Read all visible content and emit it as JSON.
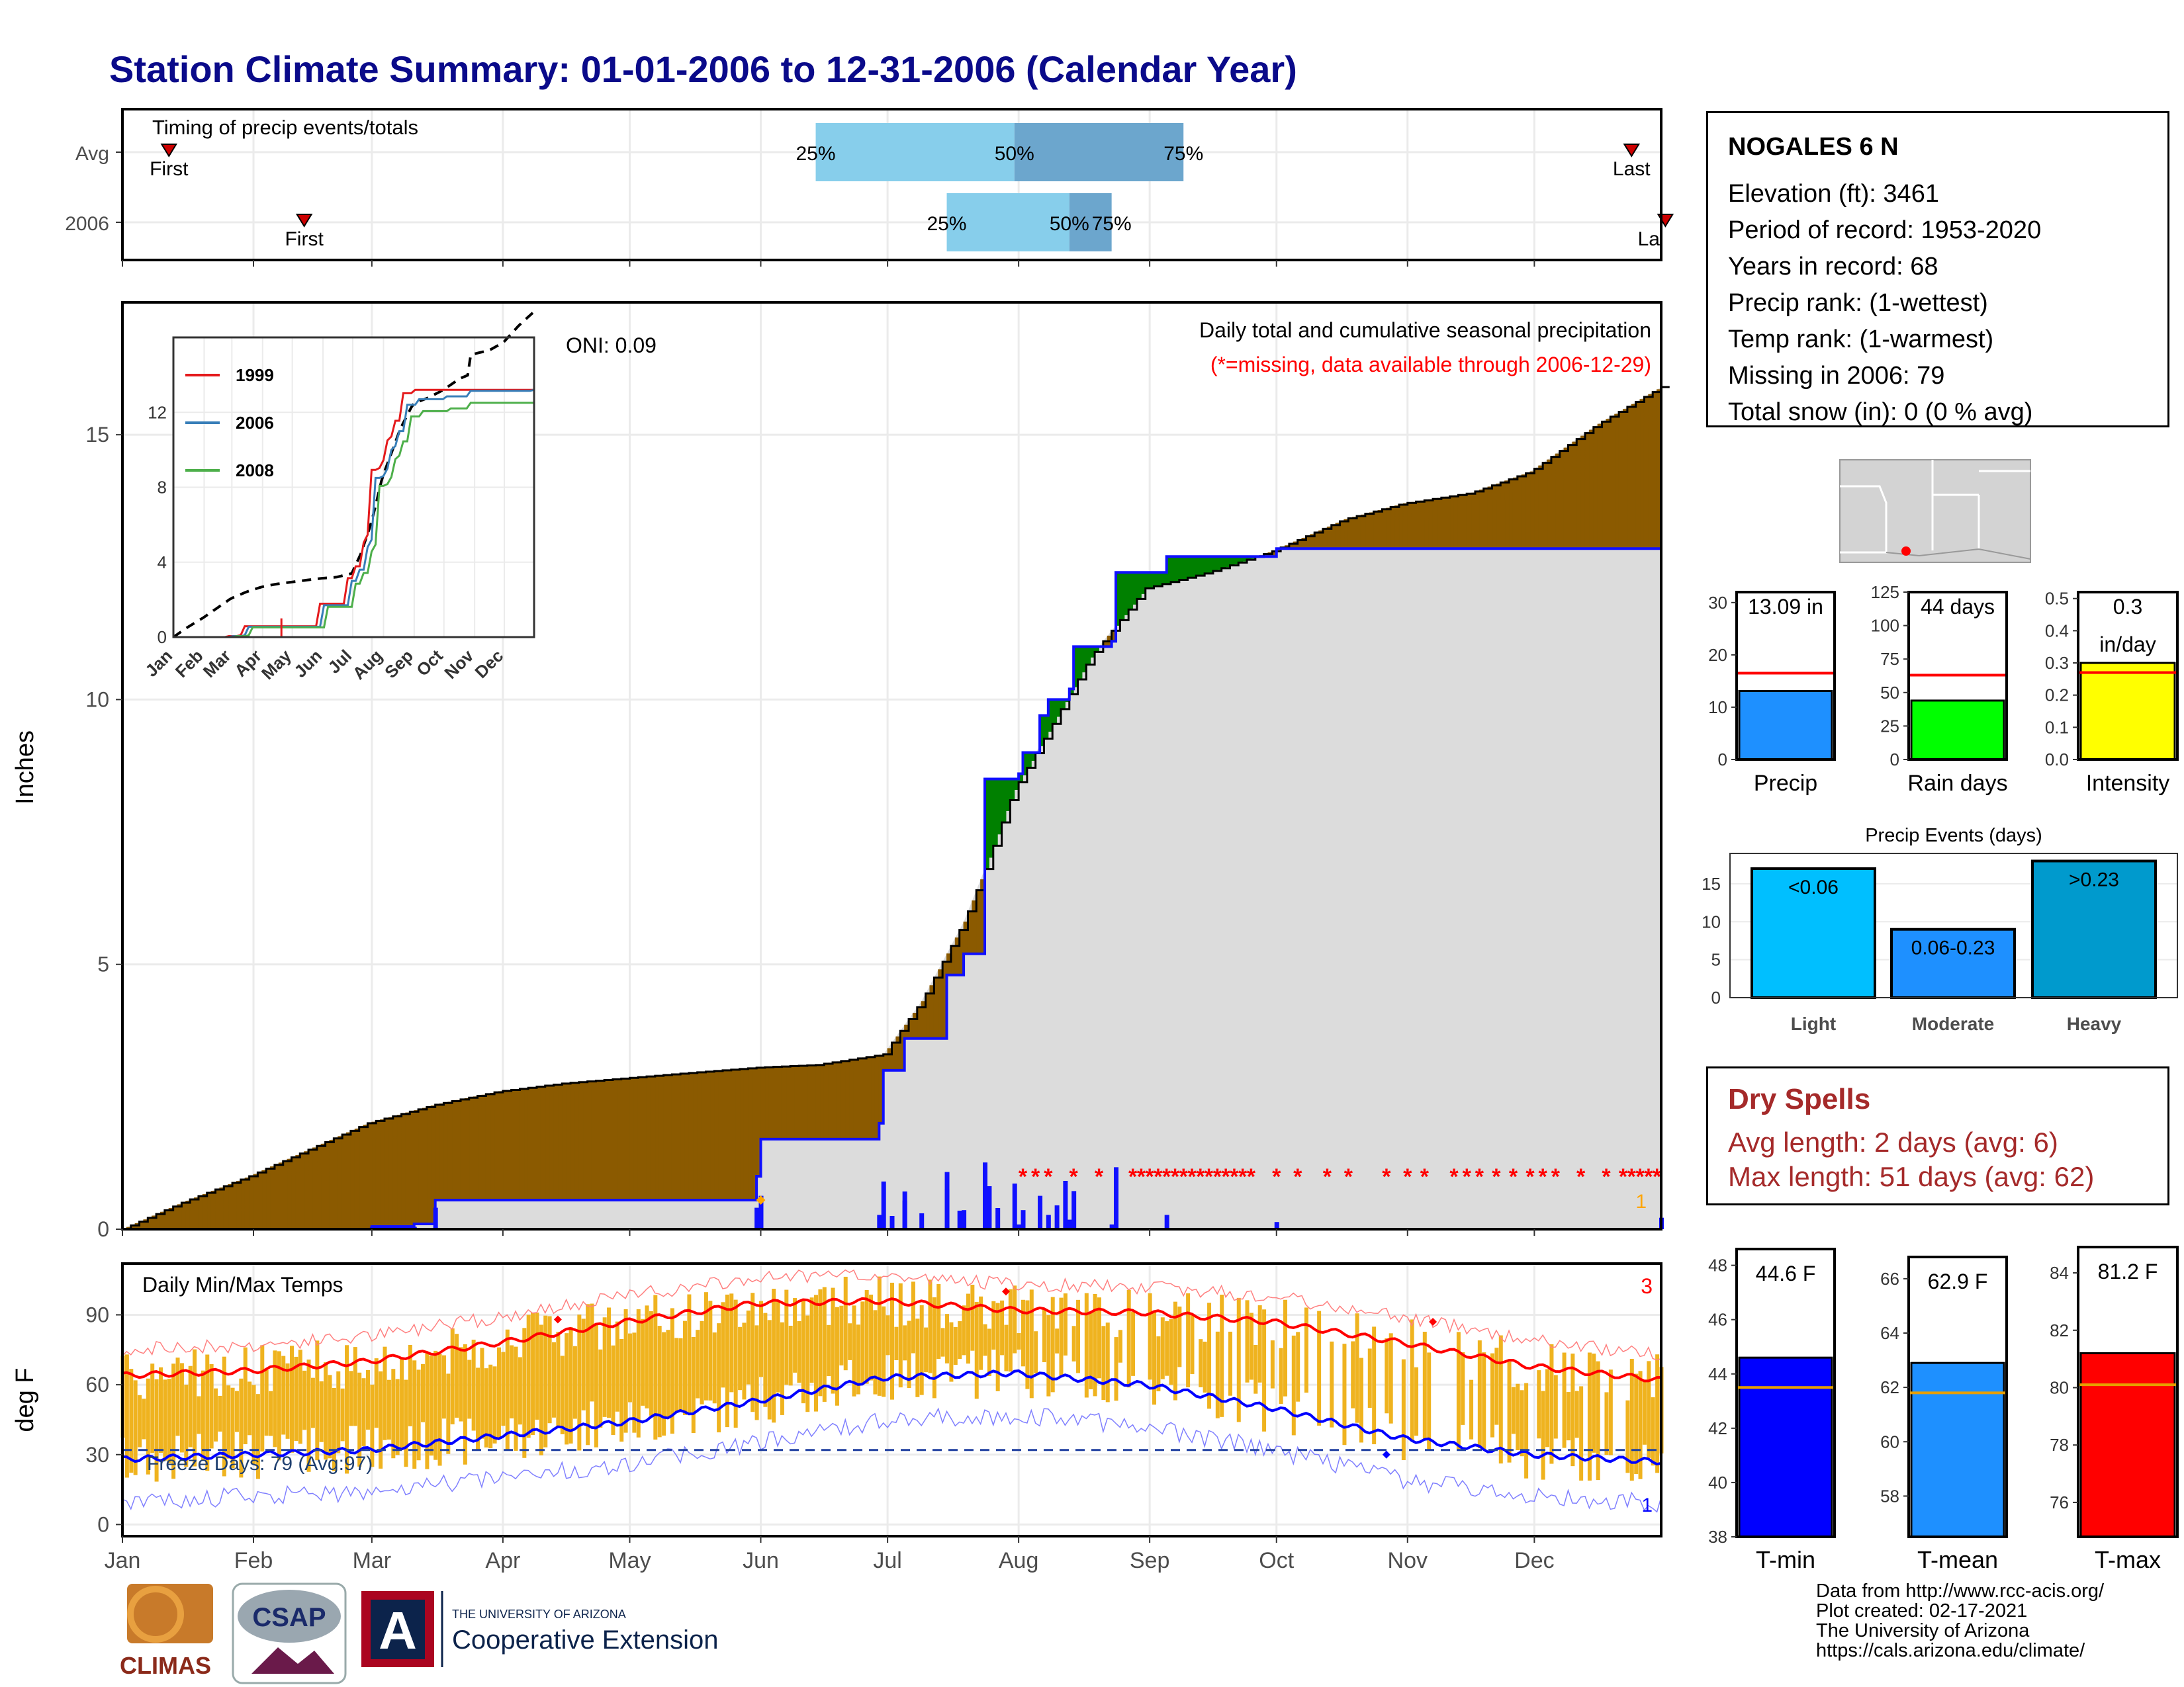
{
  "title": "Station Climate Summary: 01-01-2006 to 12-31-2006 (Calendar Year)",
  "months": [
    "Jan",
    "Feb",
    "Mar",
    "Apr",
    "May",
    "Jun",
    "Jul",
    "Aug",
    "Sep",
    "Oct",
    "Nov",
    "Dec"
  ],
  "colors": {
    "title": "#0a0a8a",
    "cumulative_avg": "#8b5a00",
    "above_avg": "#008000",
    "accum_line": "#1010ff",
    "missing": "#ff0000",
    "tmax": "#ff0000",
    "tmin": "#0000ff",
    "bars": "#efb31f"
  },
  "timing": {
    "title": "Timing of precip events/totals",
    "rows": [
      "Avg",
      "2006"
    ],
    "first_label": "First",
    "last_label": "Last",
    "last_label_2006": "La",
    "pct_labels": [
      "25%",
      "50%",
      "75%"
    ]
  },
  "station": {
    "name": "NOGALES 6 N",
    "lines": [
      "Elevation (ft): 3461",
      "Period of record: 1953-2020",
      "Years in record: 68",
      "Precip rank:  (1-wettest)",
      "Temp rank:  (1-warmest)",
      "Missing in 2006: 79",
      "Total snow (in): 0 (0 % avg)"
    ]
  },
  "precip_panel": {
    "ylabel": "Inches",
    "label1": "Daily total and cumulative seasonal precipitation",
    "label2": "(*=missing, data available through 2006-12-29)",
    "oni": "ONI: 0.09",
    "yticks": [
      "0",
      "5",
      "10",
      "15"
    ],
    "corner_count": "1"
  },
  "inset": {
    "yticks": [
      "0",
      "4",
      "8",
      "12"
    ],
    "legend": [
      "1999",
      "2006",
      "2008"
    ],
    "legend_colors": [
      "#e41a1c",
      "#377eb8",
      "#4daf4a"
    ]
  },
  "mini_bars": [
    {
      "label": "Precip",
      "value_label": "13.09 in",
      "ticks": [
        "0",
        "10",
        "20",
        "30"
      ],
      "color": "#1e90ff"
    },
    {
      "label": "Rain days",
      "value_label": "44 days",
      "ticks": [
        "0",
        "25",
        "50",
        "75",
        "100",
        "125"
      ],
      "color": "#00ff00"
    },
    {
      "label": "Intensity",
      "value_label": "0.3",
      "value_label2": "in/day",
      "ticks": [
        "0.0",
        "0.1",
        "0.2",
        "0.3",
        "0.4",
        "0.5"
      ],
      "color": "#ffff00"
    }
  ],
  "events": {
    "title": "Precip Events (days)",
    "ticks": [
      "0",
      "5",
      "10",
      "15"
    ],
    "bars": [
      {
        "category": "Light",
        "label": "<0.06",
        "value": 17
      },
      {
        "category": "Moderate",
        "label": "0.06-0.23",
        "value": 9
      },
      {
        "category": "Heavy",
        "label": ">0.23",
        "value": 18
      }
    ]
  },
  "dry_spells": {
    "title": "Dry Spells",
    "lines": [
      "Avg length: 2 days (avg: 6)",
      "Max length: 51 days (avg: 62)"
    ]
  },
  "temp_panel": {
    "title": "Daily Min/Max Temps",
    "ylabel": "deg F",
    "yticks": [
      "0",
      "30",
      "60",
      "90"
    ],
    "freeze": "Freeze Days: 79 (Avg:97)",
    "count_top": "3",
    "count_bottom": "1"
  },
  "temp_bars": [
    {
      "label": "T-min",
      "value_label": "44.6 F",
      "ticks": [
        "38",
        "40",
        "42",
        "44",
        "46",
        "48"
      ],
      "color": "#0000ff"
    },
    {
      "label": "T-mean",
      "value_label": "62.9 F",
      "ticks": [
        "58",
        "60",
        "62",
        "64",
        "66"
      ],
      "color": "#1e90ff"
    },
    {
      "label": "T-max",
      "value_label": "81.2 F",
      "ticks": [
        "76",
        "78",
        "80",
        "82",
        "84"
      ],
      "color": "#ff0000"
    }
  ],
  "logos": {
    "climas": "CLIMAS",
    "csap": "CSAP",
    "csap_url": "http://cals.arizona.edu/climate",
    "ua_small": "THE UNIVERSITY OF ARIZONA",
    "ua_big": "Cooperative Extension"
  },
  "credits": [
    "Data from http://www.rcc-acis.org/",
    "Plot created: 02-17-2021",
    "The University of Arizona",
    "https://cals.arizona.edu/climate/"
  ],
  "chart_data": [
    {
      "type": "area",
      "title": "Daily total and cumulative seasonal precipitation",
      "ylabel": "Inches",
      "ylim": [
        0,
        17.5
      ],
      "x_units": "day of year",
      "series": [
        {
          "name": "cumulative average",
          "x": [
            1,
            15,
            31,
            45,
            59,
            75,
            90,
            105,
            120,
            135,
            151,
            165,
            181,
            190,
            200,
            205,
            210,
            212,
            220,
            230,
            243,
            258,
            273,
            290,
            304,
            320,
            334,
            350,
            365
          ],
          "values": [
            0.0,
            0.5,
            1.0,
            1.5,
            2.0,
            2.35,
            2.6,
            2.75,
            2.85,
            2.95,
            3.05,
            3.1,
            3.3,
            4.3,
            5.8,
            6.8,
            7.9,
            8.3,
            9.4,
            10.8,
            12.1,
            12.4,
            12.8,
            13.4,
            13.7,
            13.9,
            14.3,
            15.2,
            15.9
          ]
        },
        {
          "name": "2006 cumulative",
          "x": [
            1,
            30,
            60,
            70,
            75,
            151,
            152,
            180,
            181,
            186,
            196,
            200,
            205,
            213,
            214,
            218,
            220,
            225,
            226,
            235,
            236,
            247,
            248,
            273,
            274,
            364,
            365
          ],
          "values": [
            0.0,
            0.0,
            0.05,
            0.1,
            0.55,
            1.0,
            1.7,
            2.0,
            3.0,
            3.6,
            4.8,
            5.2,
            8.5,
            8.6,
            9.0,
            9.7,
            10.0,
            10.2,
            11.0,
            11.1,
            12.4,
            12.4,
            12.7,
            12.7,
            12.85,
            12.85,
            13.09
          ]
        }
      ]
    },
    {
      "type": "line",
      "title": "Daily Min/Max Temps",
      "ylabel": "deg F",
      "ylim": [
        -5,
        112
      ],
      "series": [
        {
          "name": "normal max",
          "x": [
            1,
            31,
            59,
            90,
            120,
            151,
            181,
            212,
            243,
            273,
            304,
            334,
            365
          ],
          "values": [
            64,
            66,
            70,
            78,
            87,
            95,
            96,
            92,
            91,
            87,
            78,
            68,
            62
          ]
        },
        {
          "name": "normal min",
          "x": [
            1,
            31,
            59,
            90,
            120,
            151,
            181,
            212,
            243,
            273,
            304,
            334,
            365
          ],
          "values": [
            28,
            30,
            32,
            38,
            44,
            53,
            63,
            65,
            60,
            50,
            37,
            30,
            27
          ]
        }
      ]
    },
    {
      "type": "bar",
      "title": "Precip Events (days)",
      "categories": [
        "Light",
        "Moderate",
        "Heavy"
      ],
      "values": [
        17,
        9,
        18
      ],
      "ylim": [
        0,
        19
      ]
    },
    {
      "type": "bar",
      "categories": [
        "Precip",
        "Rain days",
        "Intensity"
      ],
      "values": [
        13.09,
        44,
        0.3
      ],
      "averages": [
        16.5,
        63,
        0.27
      ]
    },
    {
      "type": "bar",
      "categories": [
        "T-min",
        "T-mean",
        "T-max"
      ],
      "values": [
        44.6,
        62.9,
        81.2
      ],
      "averages": [
        43.5,
        61.8,
        80.1
      ]
    },
    {
      "type": "bar",
      "title": "Timing of precip events/totals",
      "categories": [
        "Avg",
        "2006"
      ],
      "first_day": [
        12,
        44
      ],
      "last_day": [
        358,
        366
      ],
      "pct25_day": [
        165,
        196
      ],
      "pct50_day": [
        212,
        225
      ],
      "pct75_day": [
        252,
        235
      ]
    }
  ]
}
